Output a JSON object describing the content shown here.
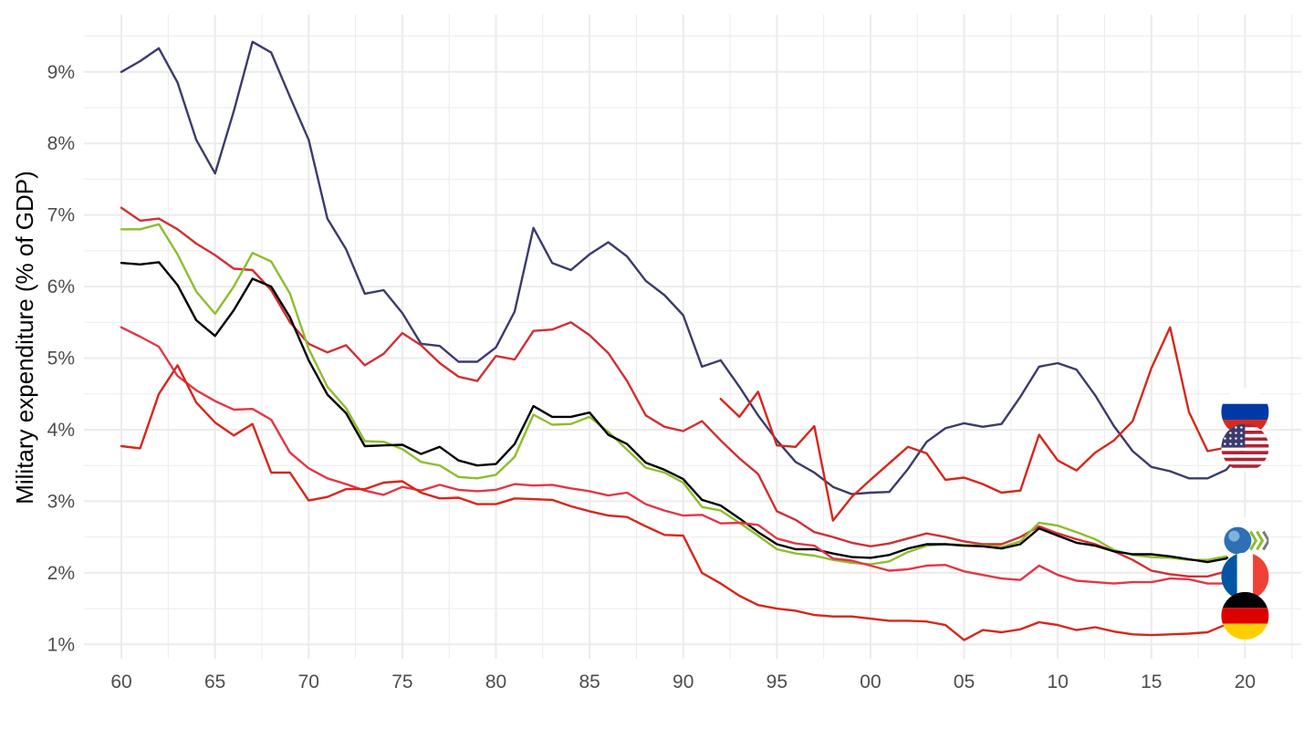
{
  "chart_data": {
    "type": "line",
    "title": "",
    "xlabel": "",
    "ylabel": "Military expenditure (% of GDP)",
    "xlim": [
      1958,
      2023
    ],
    "ylim": [
      0.8,
      9.8
    ],
    "grid": true,
    "legend": "none",
    "x_ticks": [
      1960,
      1965,
      1970,
      1975,
      1980,
      1985,
      1990,
      1995,
      2000,
      2005,
      2010,
      2015,
      2020
    ],
    "x_tick_labels": [
      "60",
      "65",
      "70",
      "75",
      "80",
      "85",
      "90",
      "95",
      "00",
      "05",
      "10",
      "15",
      "20"
    ],
    "y_ticks": [
      1,
      2,
      3,
      4,
      5,
      6,
      7,
      8,
      9
    ],
    "y_tick_labels": [
      "1%",
      "2%",
      "3%",
      "4%",
      "5%",
      "6%",
      "7%",
      "8%",
      "9%"
    ],
    "end_markers": [
      {
        "icon": "russia-flag-icon",
        "year": 2020,
        "y": 4.25
      },
      {
        "icon": "usa-flag-icon",
        "year": 2020,
        "y": 3.75
      },
      {
        "icon": "oecd-logo-icon",
        "year": 2020,
        "y": 2.45
      },
      {
        "icon": "france-flag-icon",
        "year": 2020,
        "y": 1.95
      },
      {
        "icon": "germany-flag-icon",
        "year": 2020,
        "y": 1.4
      }
    ],
    "series": [
      {
        "color": "#3b3b6e",
        "x": [
          1960,
          1961,
          1962,
          1963,
          1964,
          1965,
          1966,
          1967,
          1968,
          1969,
          1970,
          1971,
          1972,
          1973,
          1974,
          1975,
          1976,
          1977,
          1978,
          1979,
          1980,
          1981,
          1982,
          1983,
          1984,
          1985,
          1986,
          1987,
          1988,
          1989,
          1990,
          1991,
          1992,
          1993,
          1994,
          1995,
          1996,
          1997,
          1998,
          1999,
          2000,
          2001,
          2002,
          2003,
          2004,
          2005,
          2006,
          2007,
          2008,
          2009,
          2010,
          2011,
          2012,
          2013,
          2014,
          2015,
          2016,
          2017,
          2018,
          2019,
          2020
        ],
        "y": [
          9.0,
          9.15,
          9.33,
          8.85,
          8.05,
          7.58,
          8.45,
          9.42,
          9.27,
          8.65,
          8.05,
          6.95,
          6.52,
          5.9,
          5.95,
          5.63,
          5.2,
          5.17,
          4.95,
          4.95,
          5.15,
          5.65,
          6.82,
          6.33,
          6.23,
          6.45,
          6.62,
          6.42,
          6.08,
          5.88,
          5.6,
          4.88,
          4.97,
          4.6,
          4.2,
          3.85,
          3.55,
          3.4,
          3.2,
          3.1,
          3.12,
          3.13,
          3.45,
          3.83,
          4.02,
          4.09,
          4.04,
          4.08,
          4.46,
          4.88,
          4.93,
          4.84,
          4.48,
          4.05,
          3.7,
          3.48,
          3.42,
          3.32,
          3.32,
          3.44,
          3.75
        ]
      },
      {
        "color": "#d03034",
        "x": [
          1960,
          1961,
          1962,
          1963,
          1964,
          1965,
          1966,
          1967,
          1968,
          1969,
          1970,
          1971,
          1972,
          1973,
          1974,
          1975,
          1976,
          1977,
          1978,
          1979,
          1980,
          1981,
          1982,
          1983,
          1984,
          1985,
          1986,
          1987,
          1988,
          1989,
          1990,
          1991,
          1992,
          1993,
          1994,
          1995,
          1996,
          1997,
          1998,
          1999,
          2000,
          2001,
          2002,
          2003,
          2004,
          2005,
          2006,
          2007,
          2008,
          2009,
          2010,
          2011,
          2012,
          2013,
          2014,
          2015,
          2016,
          2017,
          2018,
          2019
        ],
        "y": [
          7.1,
          6.92,
          6.95,
          6.8,
          6.6,
          6.44,
          6.25,
          6.23,
          5.95,
          5.5,
          5.2,
          5.08,
          5.18,
          4.9,
          5.06,
          5.35,
          5.18,
          4.93,
          4.74,
          4.68,
          5.03,
          4.98,
          5.38,
          5.4,
          5.5,
          5.32,
          5.07,
          4.68,
          4.2,
          4.04,
          3.98,
          4.12,
          3.85,
          3.6,
          3.38,
          2.86,
          2.74,
          2.57,
          2.5,
          2.42,
          2.37,
          2.41,
          2.48,
          2.55,
          2.5,
          2.44,
          2.4,
          2.4,
          2.5,
          2.65,
          2.55,
          2.47,
          2.4,
          2.3,
          2.18,
          2.03,
          1.98,
          1.95,
          1.95,
          2.02
        ]
      },
      {
        "color": "#8ebd2c",
        "x": [
          1960,
          1961,
          1962,
          1963,
          1964,
          1965,
          1966,
          1967,
          1968,
          1969,
          1970,
          1971,
          1972,
          1973,
          1974,
          1975,
          1976,
          1977,
          1978,
          1979,
          1980,
          1981,
          1982,
          1983,
          1984,
          1985,
          1986,
          1987,
          1988,
          1989,
          1990,
          1991,
          1992,
          1993,
          1994,
          1995,
          1996,
          1997,
          1998,
          1999,
          2000,
          2001,
          2002,
          2003,
          2004,
          2005,
          2006,
          2007,
          2008,
          2009,
          2010,
          2011,
          2012,
          2013,
          2014,
          2015,
          2016,
          2017,
          2018,
          2019,
          2020
        ],
        "y": [
          6.8,
          6.8,
          6.87,
          6.45,
          5.93,
          5.62,
          6.0,
          6.47,
          6.35,
          5.9,
          5.13,
          4.6,
          4.3,
          3.84,
          3.83,
          3.73,
          3.55,
          3.5,
          3.34,
          3.32,
          3.37,
          3.62,
          4.21,
          4.07,
          4.08,
          4.18,
          3.97,
          3.72,
          3.47,
          3.4,
          3.26,
          2.92,
          2.87,
          2.7,
          2.52,
          2.33,
          2.27,
          2.24,
          2.18,
          2.14,
          2.12,
          2.16,
          2.29,
          2.38,
          2.4,
          2.39,
          2.38,
          2.36,
          2.44,
          2.7,
          2.66,
          2.57,
          2.47,
          2.32,
          2.25,
          2.22,
          2.21,
          2.18,
          2.18,
          2.23,
          2.5
        ]
      },
      {
        "color": "#000000",
        "x": [
          1960,
          1961,
          1962,
          1963,
          1964,
          1965,
          1966,
          1967,
          1968,
          1969,
          1970,
          1971,
          1972,
          1973,
          1974,
          1975,
          1976,
          1977,
          1978,
          1979,
          1980,
          1981,
          1982,
          1983,
          1984,
          1985,
          1986,
          1987,
          1988,
          1989,
          1990,
          1991,
          1992,
          1993,
          1994,
          1995,
          1996,
          1997,
          1998,
          1999,
          2000,
          2001,
          2002,
          2003,
          2004,
          2005,
          2006,
          2007,
          2008,
          2009,
          2010,
          2011,
          2012,
          2013,
          2014,
          2015,
          2016,
          2017,
          2018,
          2019,
          2020
        ],
        "y": [
          6.33,
          6.31,
          6.34,
          6.02,
          5.53,
          5.31,
          5.67,
          6.11,
          6.0,
          5.57,
          4.97,
          4.49,
          4.23,
          3.77,
          3.78,
          3.79,
          3.66,
          3.76,
          3.57,
          3.5,
          3.52,
          3.8,
          4.33,
          4.18,
          4.18,
          4.24,
          3.93,
          3.8,
          3.54,
          3.44,
          3.31,
          3.02,
          2.94,
          2.76,
          2.57,
          2.4,
          2.33,
          2.33,
          2.27,
          2.22,
          2.21,
          2.25,
          2.34,
          2.4,
          2.4,
          2.38,
          2.37,
          2.34,
          2.4,
          2.62,
          2.52,
          2.42,
          2.38,
          2.3,
          2.26,
          2.26,
          2.23,
          2.19,
          2.15,
          2.2,
          2.45
        ]
      },
      {
        "color": "#e33646",
        "x": [
          1960,
          1961,
          1962,
          1963,
          1964,
          1965,
          1966,
          1967,
          1968,
          1969,
          1970,
          1971,
          1972,
          1973,
          1974,
          1975,
          1976,
          1977,
          1978,
          1979,
          1980,
          1981,
          1982,
          1983,
          1984,
          1985,
          1986,
          1987,
          1988,
          1989,
          1990,
          1991,
          1992,
          1993,
          1994,
          1995,
          1996,
          1997,
          1998,
          1999,
          2000,
          2001,
          2002,
          2003,
          2004,
          2005,
          2006,
          2007,
          2008,
          2009,
          2010,
          2011,
          2012,
          2013,
          2014,
          2015,
          2016,
          2017,
          2018,
          2019
        ],
        "y": [
          5.43,
          5.3,
          5.16,
          4.75,
          4.55,
          4.4,
          4.28,
          4.29,
          4.14,
          3.68,
          3.46,
          3.32,
          3.24,
          3.15,
          3.09,
          3.2,
          3.15,
          3.23,
          3.16,
          3.14,
          3.16,
          3.24,
          3.22,
          3.23,
          3.18,
          3.14,
          3.08,
          3.12,
          2.96,
          2.87,
          2.8,
          2.81,
          2.69,
          2.7,
          2.67,
          2.48,
          2.41,
          2.38,
          2.2,
          2.17,
          2.1,
          2.03,
          2.05,
          2.1,
          2.11,
          2.02,
          1.97,
          1.92,
          1.9,
          2.1,
          1.97,
          1.89,
          1.87,
          1.85,
          1.87,
          1.87,
          1.92,
          1.91,
          1.85,
          1.85
        ]
      },
      {
        "color": "#d8261a",
        "x": [
          1960,
          1961,
          1962,
          1963,
          1964,
          1965,
          1966,
          1967,
          1968,
          1969,
          1970,
          1971,
          1972,
          1973,
          1974,
          1975,
          1976,
          1977,
          1978,
          1979,
          1980,
          1981,
          1982,
          1983,
          1984,
          1985,
          1986,
          1987,
          1988,
          1989,
          1990,
          1991,
          1992,
          1993,
          1994,
          1995,
          1996,
          1997,
          1998,
          1999,
          2000,
          2001,
          2002,
          2003,
          2004,
          2005,
          2006,
          2007,
          2008,
          2009,
          2010,
          2011,
          2012,
          2013,
          2014,
          2015,
          2016,
          2017,
          2018,
          2019
        ],
        "y": [
          3.77,
          3.74,
          4.5,
          4.9,
          4.38,
          4.1,
          3.92,
          4.08,
          3.4,
          3.4,
          3.01,
          3.06,
          3.17,
          3.17,
          3.26,
          3.28,
          3.12,
          3.04,
          3.05,
          2.96,
          2.96,
          3.04,
          3.03,
          3.02,
          2.93,
          2.86,
          2.8,
          2.78,
          2.65,
          2.53,
          2.52,
          2.0,
          1.85,
          1.68,
          1.55,
          1.5,
          1.47,
          1.41,
          1.39,
          1.39,
          1.36,
          1.33,
          1.33,
          1.32,
          1.27,
          1.06,
          1.2,
          1.17,
          1.21,
          1.31,
          1.27,
          1.2,
          1.24,
          1.18,
          1.14,
          1.13,
          1.14,
          1.15,
          1.17,
          1.28
        ]
      },
      {
        "color": "#d8261a",
        "x": [
          1992,
          1993,
          1994,
          1995,
          1996,
          1997,
          1998,
          1999,
          2000,
          2001,
          2002,
          2003,
          2004,
          2005,
          2006,
          2007,
          2008,
          2009,
          2010,
          2011,
          2012,
          2013,
          2014,
          2015,
          2016,
          2017,
          2018,
          2019
        ],
        "y": [
          4.43,
          4.18,
          4.53,
          3.78,
          3.76,
          4.05,
          2.73,
          3.06,
          3.3,
          3.53,
          3.76,
          3.67,
          3.3,
          3.33,
          3.24,
          3.12,
          3.15,
          3.93,
          3.57,
          3.43,
          3.68,
          3.85,
          4.12,
          4.86,
          5.43,
          4.25,
          3.7,
          3.75
        ]
      }
    ]
  }
}
